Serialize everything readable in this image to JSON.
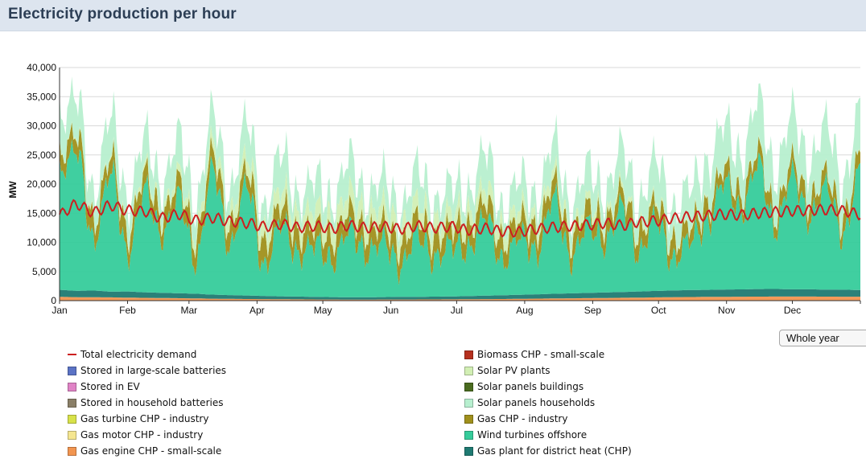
{
  "header": {
    "title": "Electricity production per hour"
  },
  "controls": {
    "range_label": "Whole year"
  },
  "chart_data": {
    "type": "area",
    "title": "Electricity production per hour",
    "xlabel": "",
    "ylabel": "MW",
    "ylim": [
      0,
      40000
    ],
    "yticks": [
      "0",
      "5,000",
      "10,000",
      "15,000",
      "20,000",
      "25,000",
      "30,000",
      "35,000",
      "40,000"
    ],
    "ytick_values": [
      0,
      5000,
      10000,
      15000,
      20000,
      25000,
      30000,
      35000,
      40000
    ],
    "months": [
      "Jan",
      "Feb",
      "Mar",
      "Apr",
      "May",
      "Jun",
      "Jul",
      "Aug",
      "Sep",
      "Oct",
      "Nov",
      "Dec"
    ],
    "grid": true,
    "legend_position": "bottom",
    "stack_order": [
      "Gas engine CHP - small-scale",
      "Gas plant for district heat (CHP)",
      "Wind turbines offshore",
      "Gas CHP - industry",
      "Solar PV plants",
      "Solar panels buildings",
      "Solar panels households"
    ],
    "series": [
      {
        "name": "Total electricity demand",
        "color": "#cc1f1f",
        "kind": "line",
        "values": [
          14800,
          16500,
          15200,
          16300,
          15500,
          15300,
          14200,
          14800,
          13800,
          14200,
          13600,
          13300,
          12700,
          13100,
          12600,
          12800,
          12400,
          12900,
          12500,
          12700,
          12300,
          12800,
          12500,
          12700,
          12100,
          12400,
          11900,
          11800,
          12300,
          12600,
          12800,
          13000,
          13300,
          12900,
          13500,
          13700,
          14100,
          14400,
          14600,
          14800,
          14700,
          15000,
          15200,
          15400,
          15500,
          15600,
          15400,
          14800
        ]
      },
      {
        "name": "Stored in large-scale batteries",
        "color": "#5b73c5",
        "kind": "area"
      },
      {
        "name": "Stored in EV",
        "color": "#e083c6",
        "kind": "area"
      },
      {
        "name": "Stored in household batteries",
        "color": "#8a7f67",
        "kind": "area"
      },
      {
        "name": "Gas turbine CHP - industry",
        "color": "#d8e24a",
        "kind": "area"
      },
      {
        "name": "Gas motor CHP - industry",
        "color": "#f5e690",
        "kind": "area"
      },
      {
        "name": "Gas engine CHP - small-scale",
        "color": "#f29550",
        "kind": "area",
        "values": [
          650,
          600,
          580,
          560,
          520,
          480,
          450,
          420,
          380,
          330,
          300,
          280,
          260,
          240,
          220,
          200,
          190,
          180,
          180,
          190,
          200,
          200,
          210,
          220,
          240,
          260,
          280,
          310,
          340,
          370,
          400,
          430,
          460,
          490,
          520,
          560,
          600,
          620,
          650,
          660,
          680,
          690,
          700,
          700,
          700,
          690,
          680,
          670
        ]
      },
      {
        "name": "Biomass CHP - small-scale",
        "color": "#b5301e",
        "kind": "area"
      },
      {
        "name": "Solar PV plants",
        "color": "#d2efb4",
        "kind": "area",
        "values": [
          200,
          250,
          300,
          400,
          600,
          800,
          1000,
          1300,
          1600,
          1900,
          2200,
          2400,
          2600,
          2800,
          3000,
          3100,
          3200,
          3200,
          3100,
          3100,
          3000,
          2900,
          2800,
          2700,
          2600,
          2500,
          2300,
          2100,
          1900,
          1700,
          1500,
          1300,
          1100,
          900,
          700,
          550,
          450,
          350,
          300,
          250,
          220,
          200,
          180,
          170,
          160,
          160,
          170,
          180
        ]
      },
      {
        "name": "Solar panels buildings",
        "color": "#4a6b1f",
        "kind": "area"
      },
      {
        "name": "Solar panels households",
        "color": "#b7efcf",
        "kind": "area",
        "values": [
          5500,
          6500,
          4000,
          7200,
          4500,
          6000,
          3800,
          6800,
          4200,
          5200,
          3600,
          6400,
          3000,
          6800,
          2800,
          5600,
          2600,
          6200,
          2500,
          5200,
          2400,
          6000,
          2600,
          5000,
          2800,
          6600,
          2500,
          5200,
          2900,
          5800,
          3300,
          6200,
          3600,
          7000,
          4200,
          7400,
          4600,
          6800,
          6200,
          7800,
          5800,
          9000,
          6400,
          8400,
          6000,
          8800,
          5800,
          8200
        ]
      },
      {
        "name": "Gas CHP - industry",
        "color": "#a0901c",
        "kind": "area",
        "values": [
          3000,
          2800,
          3400,
          2600,
          3500,
          2700,
          3300,
          2500,
          3600,
          2900,
          3400,
          2600,
          3800,
          3000,
          3500,
          2800,
          3900,
          3100,
          3600,
          2900,
          3700,
          2800,
          3500,
          3000,
          3600,
          2700,
          3400,
          2900,
          3800,
          2600,
          3500,
          2800,
          3300,
          2500,
          3200,
          2600,
          3000,
          2400,
          2800,
          2200,
          2600,
          2100,
          2500,
          2300,
          2700,
          2200,
          2600,
          2400
        ]
      },
      {
        "name": "Wind turbines offshore",
        "color": "#36cc9b",
        "kind": "area",
        "values": [
          20000,
          24500,
          8000,
          21000,
          6000,
          18000,
          9500,
          17000,
          5200,
          22000,
          7800,
          19500,
          4500,
          13000,
          6800,
          9500,
          5800,
          12000,
          7200,
          10000,
          4900,
          11000,
          6200,
          9200,
          7600,
          14000,
          5300,
          10500,
          6800,
          17000,
          5600,
          12000,
          8200,
          15000,
          6200,
          13000,
          4800,
          9000,
          11000,
          19000,
          13000,
          22000,
          10000,
          20000,
          12000,
          18000,
          9000,
          21000
        ]
      },
      {
        "name": "Gas plant for district heat (CHP)",
        "color": "#1f7a72",
        "kind": "area",
        "values": [
          1200,
          1100,
          1150,
          1000,
          1050,
          950,
          900,
          850,
          800,
          700,
          650,
          600,
          550,
          500,
          480,
          450,
          420,
          400,
          400,
          420,
          450,
          450,
          480,
          500,
          550,
          600,
          650,
          700,
          750,
          800,
          850,
          900,
          950,
          1000,
          1050,
          1100,
          1150,
          1200,
          1200,
          1250,
          1250,
          1300,
          1300,
          1250,
          1250,
          1200,
          1200,
          1150
        ]
      }
    ]
  }
}
